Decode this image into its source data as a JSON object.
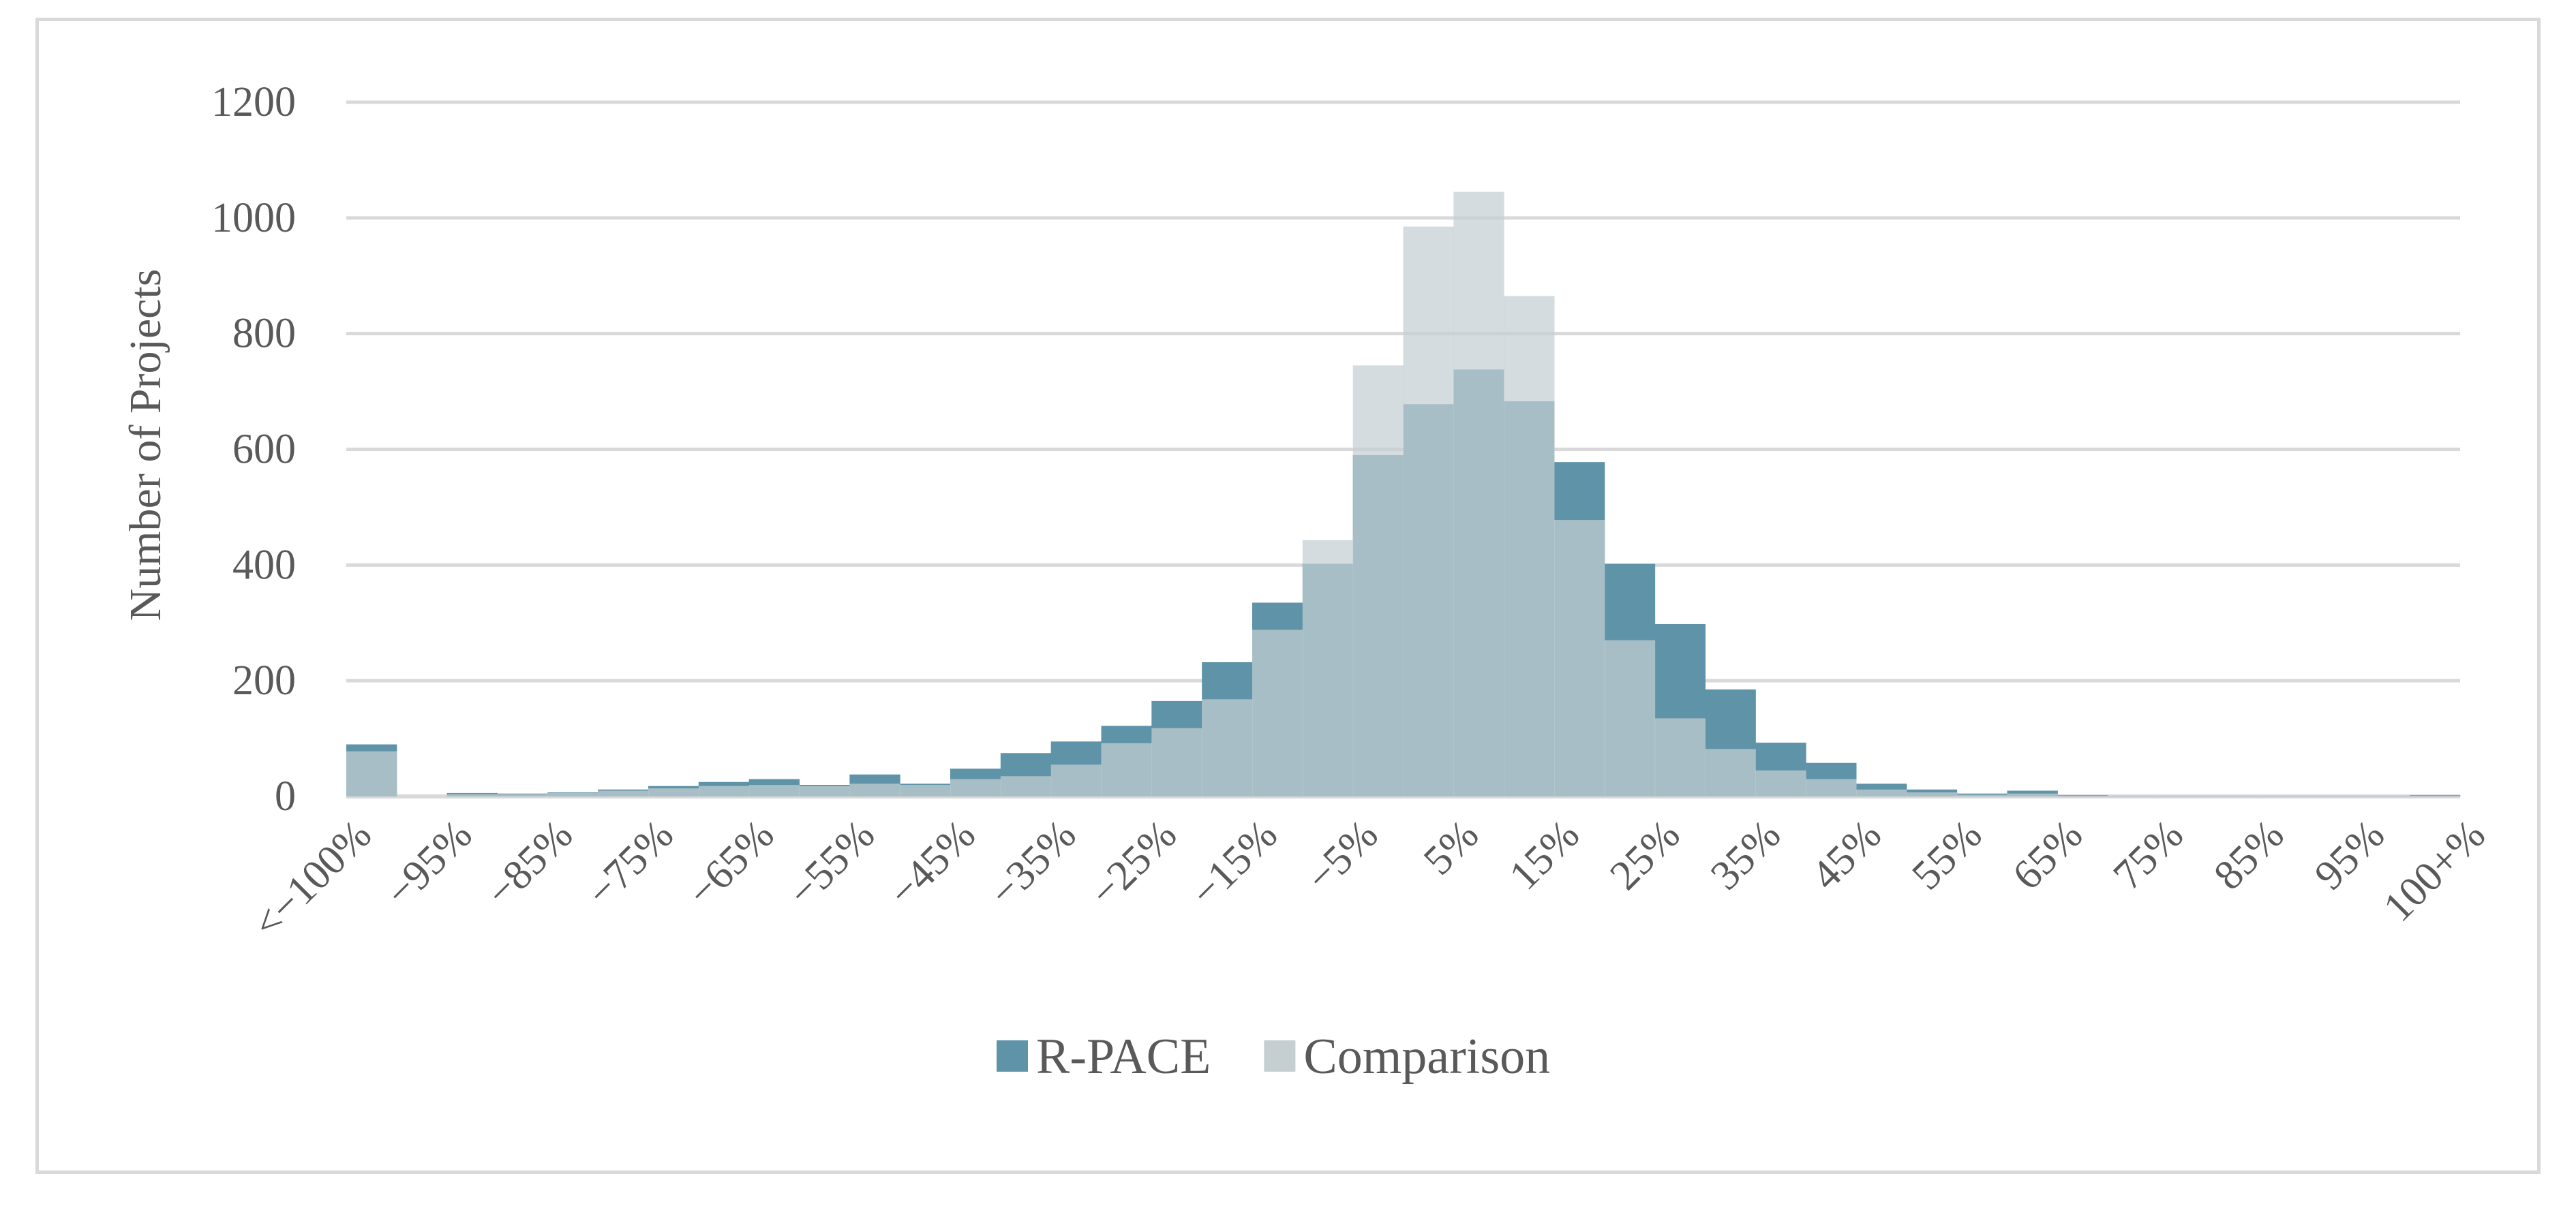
{
  "chart_data": {
    "type": "bar",
    "title": "",
    "xlabel": "",
    "ylabel": "Number of Projects",
    "ylim": [
      0,
      1200
    ],
    "y_ticks": [
      0,
      200,
      400,
      600,
      800,
      1000,
      1200
    ],
    "grid": true,
    "legend_position": "bottom",
    "x_tick_labels": [
      "<−100%",
      "−95%",
      "−85%",
      "−75%",
      "−65%",
      "−55%",
      "−45%",
      "−35%",
      "−25%",
      "−15%",
      "−5%",
      "5%",
      "15%",
      "25%",
      "35%",
      "45%",
      "55%",
      "65%",
      "75%",
      "85%",
      "95%",
      "100+%"
    ],
    "categories": [
      "<−100%",
      "−95%",
      "−90%",
      "−85%",
      "−80%",
      "−75%",
      "−70%",
      "−65%",
      "−60%",
      "−55%",
      "−50%",
      "−45%",
      "−40%",
      "−35%",
      "−30%",
      "−25%",
      "−20%",
      "−15%",
      "−10%",
      "−5%",
      "0%",
      "5%",
      "10%",
      "15%",
      "20%",
      "25%",
      "30%",
      "35%",
      "40%",
      "45%",
      "50%",
      "55%",
      "60%",
      "65%",
      "70%",
      "75%",
      "80%",
      "85%",
      "90%",
      "95%",
      "100%",
      "100+%"
    ],
    "series": [
      {
        "name": "R-PACE",
        "color": "#5f93a8",
        "values": [
          90,
          0,
          6,
          5,
          7,
          12,
          18,
          25,
          30,
          20,
          38,
          22,
          48,
          75,
          95,
          122,
          165,
          232,
          335,
          402,
          590,
          678,
          738,
          683,
          578,
          402,
          298,
          185,
          93,
          58,
          22,
          12,
          5,
          10,
          2,
          1,
          1,
          1,
          1,
          1,
          1,
          2
        ]
      },
      {
        "name": "Comparison",
        "color": "#c5cfd2",
        "values": [
          78,
          0,
          4,
          4,
          6,
          10,
          14,
          18,
          20,
          18,
          22,
          20,
          30,
          35,
          55,
          92,
          118,
          168,
          288,
          443,
          745,
          985,
          1045,
          865,
          478,
          270,
          135,
          82,
          45,
          30,
          12,
          7,
          3,
          5,
          1,
          1,
          1,
          1,
          1,
          1,
          1,
          1
        ]
      }
    ]
  }
}
